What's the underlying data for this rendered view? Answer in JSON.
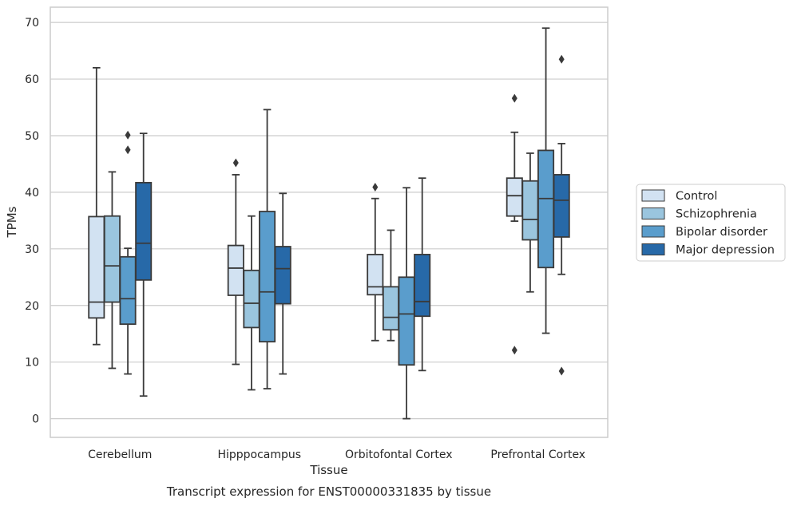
{
  "chart_data": {
    "type": "box",
    "caption": "Transcript expression for ENST00000331835 by tissue",
    "xlabel": "Tissue",
    "ylabel": "TPMs",
    "ylim": [
      -3.3,
      72.7
    ],
    "yticks": [
      0,
      10,
      20,
      30,
      40,
      50,
      60,
      70
    ],
    "grid": "horizontal",
    "legend_position": "right",
    "categories": [
      "Cerebellum",
      "Hipppocampus",
      "Orbitofontal Cortex",
      "Prefrontal Cortex"
    ],
    "series": [
      {
        "name": "Control",
        "color": "#d2e2f2",
        "boxes": [
          {
            "whislo": 13.1,
            "q1": 17.8,
            "med": 20.6,
            "q3": 35.7,
            "whishi": 62.0,
            "fliers": []
          },
          {
            "whislo": 9.6,
            "q1": 21.8,
            "med": 26.6,
            "q3": 30.6,
            "whishi": 43.1,
            "fliers": [
              45.2
            ]
          },
          {
            "whislo": 13.8,
            "q1": 21.9,
            "med": 23.3,
            "q3": 29.0,
            "whishi": 38.9,
            "fliers": [
              40.9
            ]
          },
          {
            "whislo": 34.9,
            "q1": 35.8,
            "med": 39.4,
            "q3": 42.5,
            "whishi": 50.6,
            "fliers": [
              56.6,
              12.1
            ]
          }
        ]
      },
      {
        "name": "Schizophrenia",
        "color": "#9ac5de",
        "boxes": [
          {
            "whislo": 8.9,
            "q1": 20.6,
            "med": 27.0,
            "q3": 35.8,
            "whishi": 43.6,
            "fliers": []
          },
          {
            "whislo": 5.1,
            "q1": 16.1,
            "med": 20.4,
            "q3": 26.2,
            "whishi": 35.8,
            "fliers": []
          },
          {
            "whislo": 13.8,
            "q1": 15.7,
            "med": 17.9,
            "q3": 23.3,
            "whishi": 33.3,
            "fliers": []
          },
          {
            "whislo": 22.4,
            "q1": 31.6,
            "med": 35.2,
            "q3": 42.0,
            "whishi": 46.9,
            "fliers": []
          }
        ]
      },
      {
        "name": "Bipolar disorder",
        "color": "#5a9dcc",
        "boxes": [
          {
            "whislo": 7.9,
            "q1": 16.7,
            "med": 21.2,
            "q3": 28.6,
            "whishi": 30.1,
            "fliers": [
              50.1,
              47.5
            ]
          },
          {
            "whislo": 5.3,
            "q1": 13.6,
            "med": 22.4,
            "q3": 36.6,
            "whishi": 54.6,
            "fliers": []
          },
          {
            "whislo": 0.0,
            "q1": 9.5,
            "med": 18.5,
            "q3": 25.0,
            "whishi": 40.8,
            "fliers": []
          },
          {
            "whislo": 15.1,
            "q1": 26.7,
            "med": 38.9,
            "q3": 47.4,
            "whishi": 69.0,
            "fliers": []
          }
        ]
      },
      {
        "name": "Major depression",
        "color": "#2769a8",
        "boxes": [
          {
            "whislo": 4.0,
            "q1": 24.5,
            "med": 31.0,
            "q3": 41.7,
            "whishi": 50.4,
            "fliers": []
          },
          {
            "whislo": 7.9,
            "q1": 20.3,
            "med": 26.5,
            "q3": 30.4,
            "whishi": 39.8,
            "fliers": []
          },
          {
            "whislo": 8.5,
            "q1": 18.1,
            "med": 20.7,
            "q3": 29.0,
            "whishi": 42.5,
            "fliers": []
          },
          {
            "whislo": 25.5,
            "q1": 32.1,
            "med": 38.6,
            "q3": 43.1,
            "whishi": 48.6,
            "fliers": [
              63.5,
              8.4
            ]
          }
        ]
      }
    ]
  }
}
